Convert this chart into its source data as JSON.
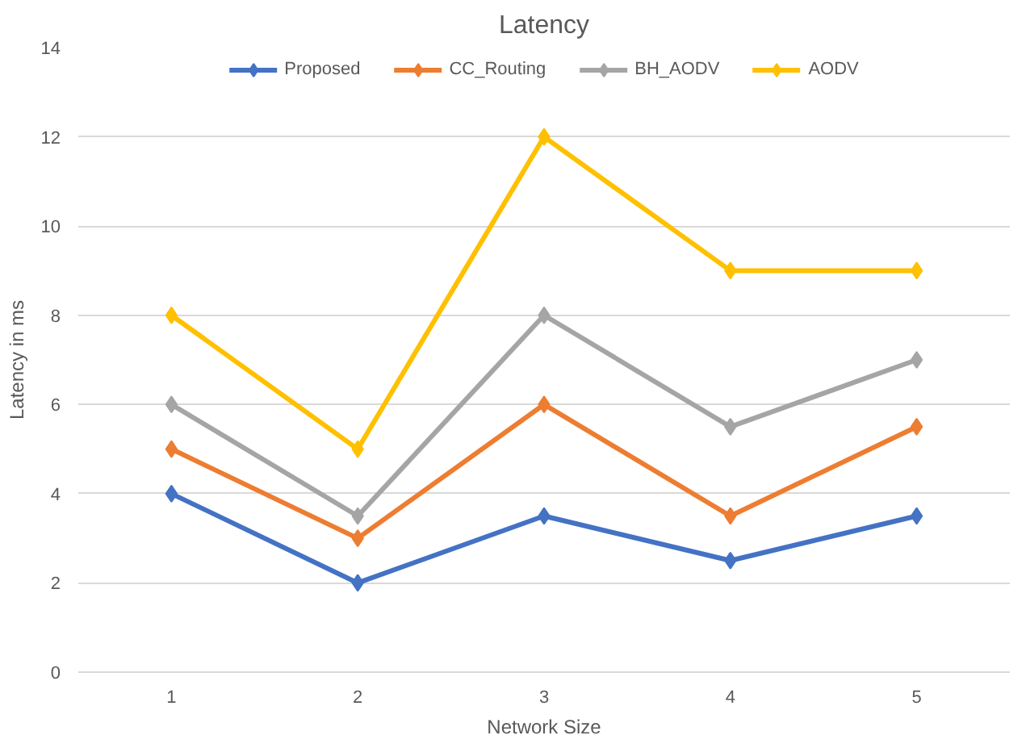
{
  "chart_data": {
    "type": "line",
    "title": "Latency",
    "xlabel": "Network Size",
    "ylabel": "Latency in ms",
    "categories": [
      "1",
      "2",
      "3",
      "4",
      "5"
    ],
    "series": [
      {
        "name": "Proposed",
        "color": "#4472c4",
        "values": [
          4,
          2,
          3.5,
          2.5,
          3.5
        ]
      },
      {
        "name": "CC_Routing",
        "color": "#ed7d31",
        "values": [
          5,
          3,
          6,
          3.5,
          5.5
        ]
      },
      {
        "name": "BH_AODV",
        "color": "#a5a5a5",
        "values": [
          6,
          3.5,
          8,
          5.5,
          7
        ]
      },
      {
        "name": "AODV",
        "color": "#ffc000",
        "values": [
          8,
          5,
          12,
          9,
          9
        ]
      }
    ],
    "ylim": [
      0,
      14
    ],
    "yticks": [
      0,
      2,
      4,
      6,
      8,
      10,
      12,
      14
    ],
    "grid": "y",
    "legend": "top",
    "marker": "diamond",
    "line_style": "solid"
  }
}
